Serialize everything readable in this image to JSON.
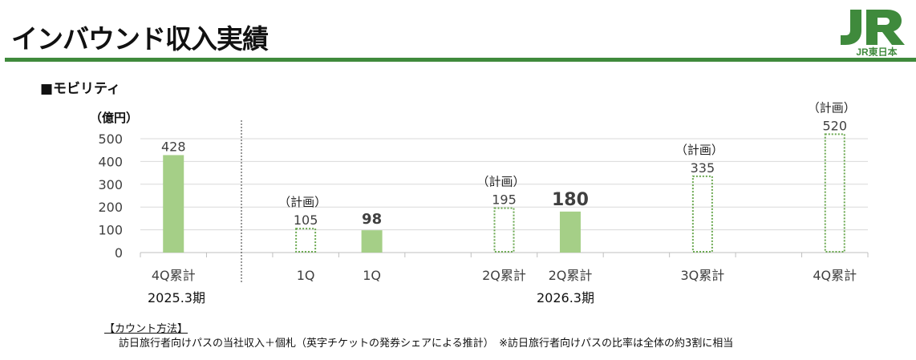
{
  "header": {
    "title": "インバウンド収入実績",
    "logo_text": "JR東日本",
    "accent": "#3f8a3c"
  },
  "section": {
    "title": "■モビリティ"
  },
  "chart_data": {
    "type": "bar",
    "ylabel": "（億円）",
    "ylim": [
      0,
      500
    ],
    "yticks": [
      0,
      100,
      200,
      300,
      400,
      500
    ],
    "grid": true,
    "bars": [
      {
        "category": "4Q累計",
        "value": 428,
        "kind": "actual",
        "label": "428"
      },
      {
        "category": "1Q",
        "value": 105,
        "kind": "plan",
        "label": "105",
        "plan_label": "（計画）"
      },
      {
        "category": "1Q",
        "value": 98,
        "kind": "actual",
        "label": "98",
        "bold": true
      },
      {
        "category": "2Q累計",
        "value": 195,
        "kind": "plan",
        "label": "195",
        "plan_label": "（計画）"
      },
      {
        "category": "2Q累計",
        "value": 180,
        "kind": "actual",
        "label": "180",
        "bold": true
      },
      {
        "category": "3Q累計",
        "value": 335,
        "kind": "plan",
        "label": "335",
        "plan_label": "（計画）"
      },
      {
        "category": "4Q累計",
        "value": 520,
        "kind": "plan",
        "label": "520",
        "plan_label": "（計画）"
      }
    ],
    "groups": [
      "2025.3期",
      "2026.3期"
    ],
    "colors": {
      "actual": "#a5cf87",
      "plan": "#6aa84f",
      "grid": "#d9d9d9"
    }
  },
  "notes": {
    "heading": "【カウント方法】",
    "text": "訪日旅行者向けパスの当社収入＋個札（英字チケットの発券シェアによる推計）　※訪日旅行者向けパスの比率は全体の約3割に相当"
  }
}
